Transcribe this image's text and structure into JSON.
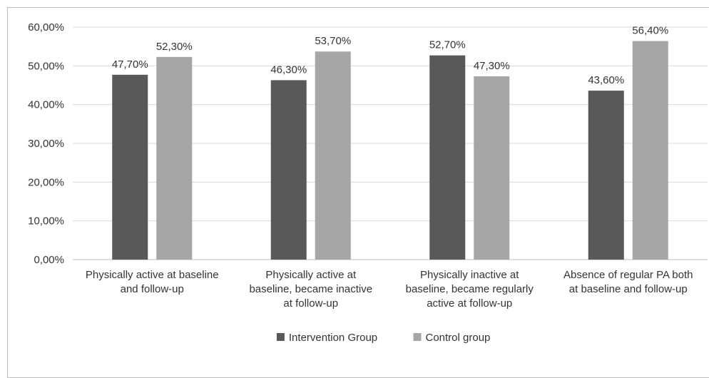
{
  "chart_data": {
    "type": "bar",
    "title": "",
    "xlabel": "",
    "ylabel": "",
    "ylim": [
      0,
      60
    ],
    "yticks": [
      0,
      10,
      20,
      30,
      40,
      50,
      60
    ],
    "ytick_labels": [
      "0,00%",
      "10,00%",
      "20,00%",
      "30,00%",
      "40,00%",
      "50,00%",
      "60,00%"
    ],
    "grid": true,
    "legend_position": "bottom",
    "categories": [
      [
        "Physically active at baseline",
        "and follow-up"
      ],
      [
        "Physically active at",
        "baseline, became inactive",
        "at follow-up"
      ],
      [
        "Physically inactive at",
        "baseline, became regularly",
        "active at follow-up"
      ],
      [
        "Absence of regular PA both",
        "at baseline and follow-up"
      ]
    ],
    "series": [
      {
        "name": "Intervention Group",
        "color": "#595959",
        "values": [
          47.7,
          46.3,
          52.7,
          43.6
        ],
        "labels": [
          "47,70%",
          "46,30%",
          "52,70%",
          "43,60%"
        ]
      },
      {
        "name": "Control group",
        "color": "#a6a6a6",
        "values": [
          52.3,
          53.7,
          47.3,
          56.4
        ],
        "labels": [
          "52,30%",
          "53,70%",
          "47,30%",
          "56,40%"
        ]
      }
    ]
  }
}
